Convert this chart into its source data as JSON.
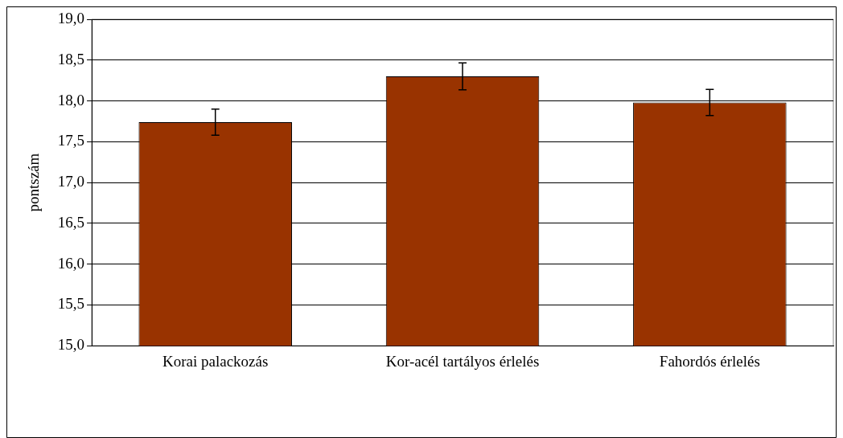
{
  "chart_data": {
    "type": "bar",
    "ylabel": "pontszám",
    "categories": [
      "Korai palackozás",
      "Kor-acél tartályos érlelés",
      "Fahordós érlelés"
    ],
    "values": [
      17.74,
      18.3,
      17.98
    ],
    "errors": [
      0.16,
      0.165,
      0.16
    ],
    "color": "#993300",
    "ylim": [
      15,
      19
    ],
    "yticks": [
      {
        "value": 15,
        "label": "15,0"
      },
      {
        "value": 15.5,
        "label": "15,5"
      },
      {
        "value": 16,
        "label": "16,0"
      },
      {
        "value": 16.5,
        "label": "16,5"
      },
      {
        "value": 17,
        "label": "17,0"
      },
      {
        "value": 17.5,
        "label": "17,5"
      },
      {
        "value": 18,
        "label": "18,0"
      },
      {
        "value": 18.5,
        "label": "18,5"
      },
      {
        "value": 19,
        "label": "19,0"
      }
    ],
    "grid": "y",
    "legend": false
  }
}
